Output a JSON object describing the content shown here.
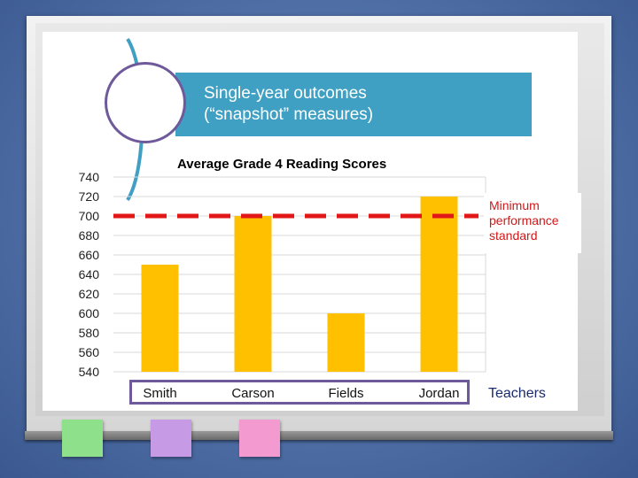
{
  "slide": {
    "title": "Single-year outcomes\n(“snapshot” measures)"
  },
  "colors": {
    "title_bg": "#3fa0c3",
    "bar": "#ffc000",
    "standard_line": "#e21818",
    "accent_purple": "#6e5a9a",
    "board_bg": "#4f6fa6"
  },
  "chart_data": {
    "type": "bar",
    "title": "Average Grade 4 Reading Scores",
    "categories": [
      "Smith",
      "Carson",
      "Fields",
      "Jordan"
    ],
    "values": [
      650,
      700,
      600,
      720
    ],
    "xlabel": "Teachers",
    "ylabel": "",
    "ylim": [
      540,
      740
    ],
    "yticks": [
      740,
      720,
      700,
      680,
      660,
      640,
      620,
      600,
      580,
      560,
      540
    ],
    "grid": true,
    "reference_line": {
      "value": 700,
      "label": "Minimum\nperformance\nstandard",
      "style": "dashed"
    }
  }
}
